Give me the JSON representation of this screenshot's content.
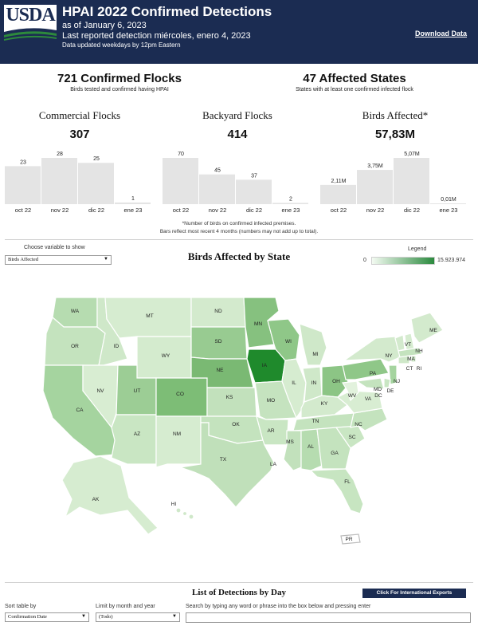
{
  "header": {
    "logo_text": "USDA",
    "title": "HPAI 2022 Confirmed Detections",
    "as_of": "as of January 6, 2023",
    "last_reported": "Last reported detection miércoles, enero 4, 2023",
    "updated": "Data updated weekdays by 12pm Eastern",
    "download_label": "Download Data"
  },
  "kpis": {
    "flocks_big": "721 Confirmed Flocks",
    "flocks_sub": "Birds tested and confirmed having HPAI",
    "states_big": "47 Affected States",
    "states_sub": "States with at least one confirmed infected flock"
  },
  "charts": [
    {
      "key": "commercial",
      "title": "Commercial Flocks",
      "total": "307",
      "categories": [
        "oct 22",
        "nov 22",
        "dic 22",
        "ene 23"
      ],
      "labels": [
        "23",
        "28",
        "25",
        "1"
      ]
    },
    {
      "key": "backyard",
      "title": "Backyard Flocks",
      "total": "414",
      "categories": [
        "oct 22",
        "nov 22",
        "dic 22",
        "ene 23"
      ],
      "labels": [
        "70",
        "45",
        "37",
        "2"
      ]
    },
    {
      "key": "birds",
      "title": "Birds Affected*",
      "total": "57,83M",
      "categories": [
        "oct 22",
        "nov 22",
        "dic 22",
        "ene 23"
      ],
      "labels": [
        "2,11M",
        "3,75M",
        "5,07M",
        "0,01M"
      ]
    }
  ],
  "chart_data": [
    {
      "type": "bar",
      "title": "Commercial Flocks",
      "categories": [
        "oct 22",
        "nov 22",
        "dic 22",
        "ene 23"
      ],
      "values": [
        23,
        28,
        25,
        1
      ]
    },
    {
      "type": "bar",
      "title": "Backyard Flocks",
      "categories": [
        "oct 22",
        "nov 22",
        "dic 22",
        "ene 23"
      ],
      "values": [
        70,
        45,
        37,
        2
      ]
    },
    {
      "type": "bar",
      "title": "Birds Affected*",
      "categories": [
        "oct 22",
        "nov 22",
        "dic 22",
        "ene 23"
      ],
      "values": [
        2.11,
        3.75,
        5.07,
        0.01
      ]
    }
  ],
  "notes": {
    "line1": "*Number of birds on confirmed infected premises.",
    "line2": "Bars reflect most recent 4 months (numbers may not add up to total)."
  },
  "map": {
    "variable_label": "Choose variable to show",
    "variable_value": "Birds Affected",
    "title": "Birds Affected by State",
    "legend_label": "Legend",
    "legend_min": "0",
    "legend_max": "15.923.974",
    "color_low": "#e9f5e4",
    "color_high": "#1f8a2c",
    "states": [
      "WA",
      "OR",
      "CA",
      "ID",
      "NV",
      "MT",
      "WY",
      "UT",
      "AZ",
      "CO",
      "NM",
      "ND",
      "SD",
      "NE",
      "KS",
      "OK",
      "TX",
      "MN",
      "IA",
      "MO",
      "AR",
      "LA",
      "WI",
      "IL",
      "MI",
      "IN",
      "OH",
      "KY",
      "TN",
      "MS",
      "AL",
      "GA",
      "FL",
      "SC",
      "NC",
      "VA",
      "WV",
      "PA",
      "NY",
      "VT",
      "NH",
      "ME",
      "MA",
      "CT",
      "RI",
      "NJ",
      "DE",
      "MD",
      "DC",
      "AK",
      "HI",
      "PR"
    ]
  },
  "list": {
    "title": "List of Detections by Day",
    "intl_button": "Click For International Exports",
    "sort_label": "Sort table by",
    "sort_value": "Confirmation Date",
    "limit_label": "Limit by month and year",
    "limit_value": "(Todo)",
    "search_label": "Search by typing any word or phrase into the box below and pressing enter"
  }
}
